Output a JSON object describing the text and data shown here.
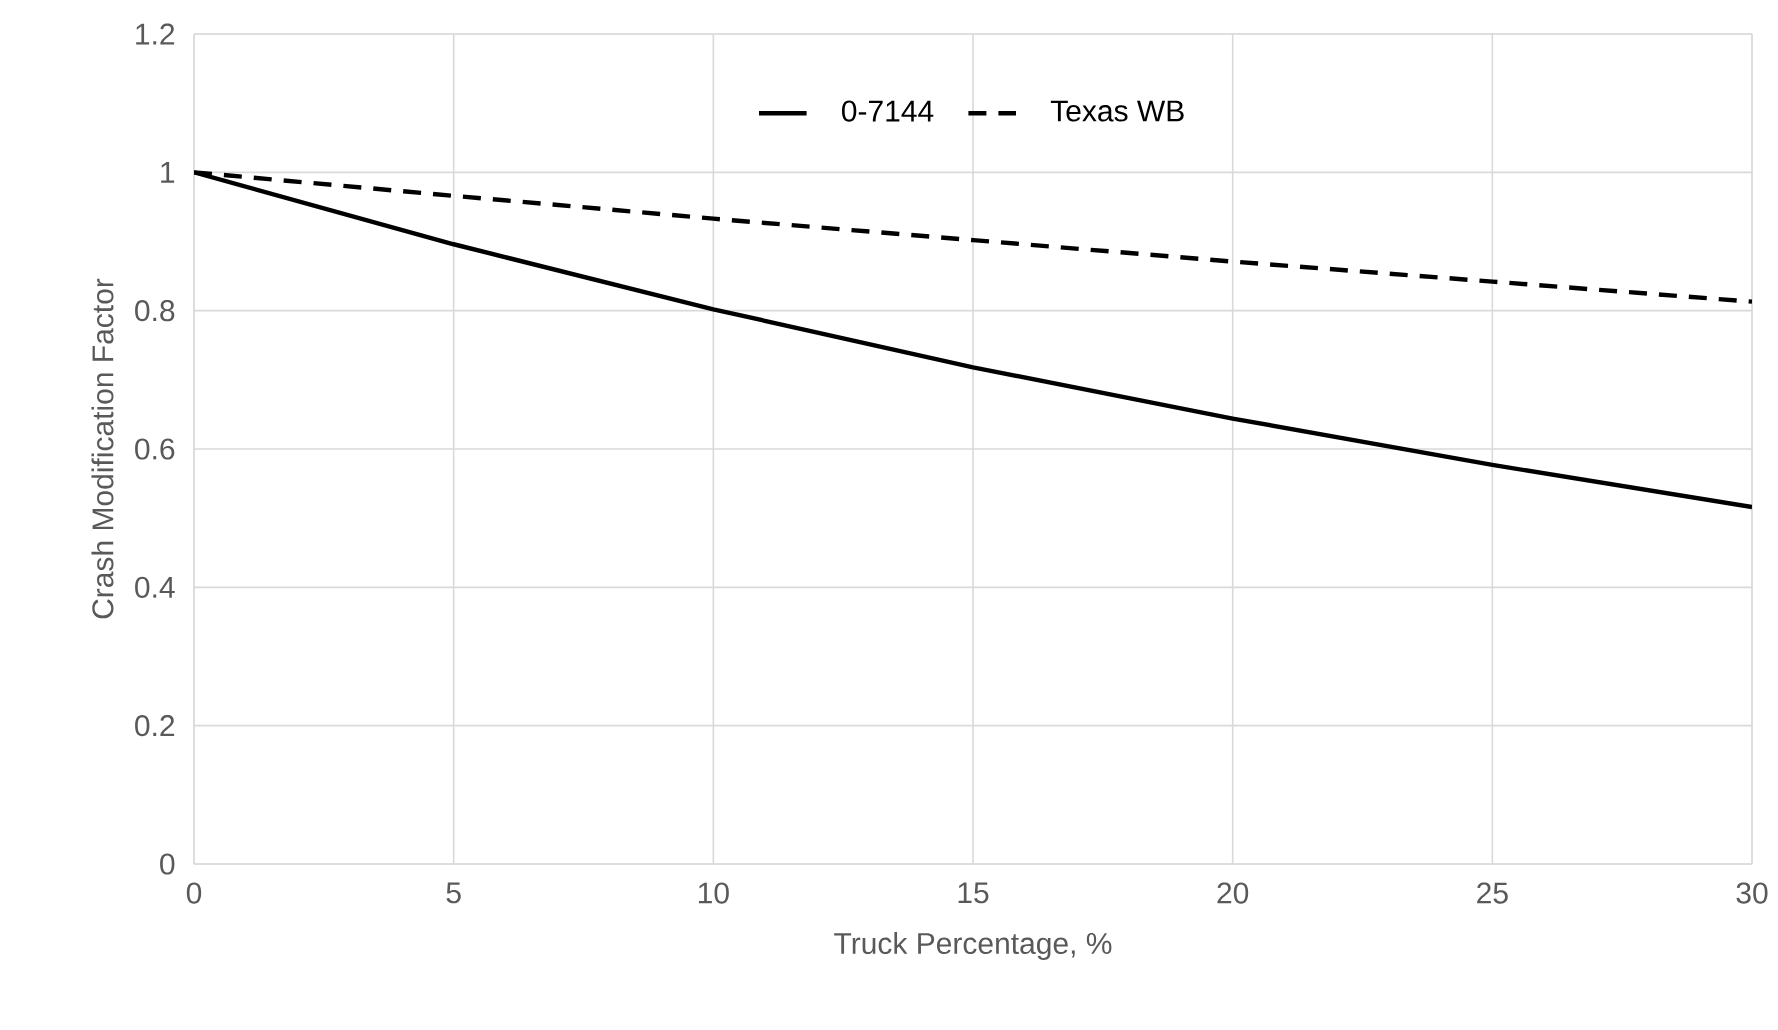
{
  "chart_data": {
    "type": "line",
    "xlabel": "Truck Percentage, %",
    "ylabel": "Crash Modification Factor",
    "x": [
      0,
      5,
      10,
      15,
      20,
      25,
      30
    ],
    "series": [
      {
        "name": "0-7144",
        "color": "#000000",
        "line_style": "solid",
        "values": [
          1,
          0.896,
          0.802,
          0.718,
          0.644,
          0.577,
          0.516
        ]
      },
      {
        "name": "Texas WB",
        "color": "#000000",
        "line_style": "dashed",
        "values": [
          1,
          0.966,
          0.933,
          0.902,
          0.871,
          0.842,
          0.813
        ]
      }
    ],
    "xlim": [
      0,
      30
    ],
    "xticks": [
      0,
      5,
      10,
      15,
      20,
      25,
      30
    ],
    "ylim": [
      0,
      1.2
    ],
    "yticks": [
      0,
      0.2,
      0.4,
      0.6,
      0.8,
      1,
      1.2
    ],
    "grid": true,
    "legend": "top"
  }
}
